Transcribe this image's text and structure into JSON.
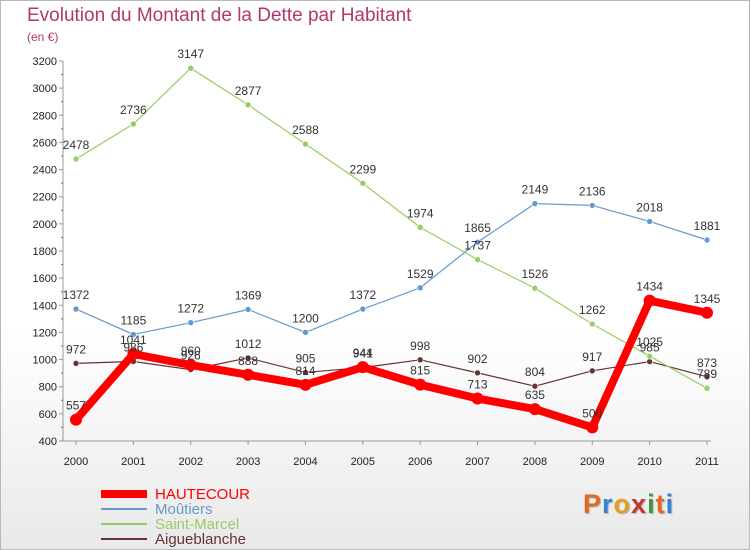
{
  "chart_data": {
    "type": "line",
    "title": "Evolution du Montant de la Dette par Habitant",
    "subtitle": "(en €)",
    "x": [
      "2000",
      "2001",
      "2002",
      "2003",
      "2004",
      "2005",
      "2006",
      "2007",
      "2008",
      "2009",
      "2010",
      "2011"
    ],
    "ylim": [
      400,
      3200
    ],
    "yticks": [
      400,
      600,
      800,
      1000,
      1200,
      1400,
      1600,
      1800,
      2000,
      2200,
      2400,
      2600,
      2800,
      3000,
      3200
    ],
    "grid": false,
    "legend_position": "bottom-left",
    "series": [
      {
        "name": "HAUTECOUR",
        "color": "#ff0000",
        "values": [
          557,
          1041,
          960,
          888,
          814,
          944,
          815,
          713,
          635,
          500,
          1434,
          1345
        ]
      },
      {
        "name": "Moûtiers",
        "color": "#6699cc",
        "values": [
          1372,
          1185,
          1272,
          1369,
          1200,
          1372,
          1529,
          1865,
          2149,
          2136,
          2018,
          1881
        ]
      },
      {
        "name": "Saint-Marcel",
        "color": "#99cc66",
        "values": [
          2478,
          2736,
          3147,
          2877,
          2588,
          2299,
          1974,
          1737,
          1526,
          1262,
          1025,
          789
        ]
      },
      {
        "name": "Aigueblanche",
        "color": "#663333",
        "values": [
          972,
          986,
          926,
          1012,
          905,
          941,
          998,
          902,
          804,
          917,
          985,
          873
        ]
      }
    ]
  },
  "logo": {
    "text": "Proxiti",
    "letters": [
      "P",
      "r",
      "o",
      "x",
      "i",
      "t",
      "i"
    ]
  },
  "colors": {
    "title": "#b4366e",
    "axis": "#999999"
  }
}
